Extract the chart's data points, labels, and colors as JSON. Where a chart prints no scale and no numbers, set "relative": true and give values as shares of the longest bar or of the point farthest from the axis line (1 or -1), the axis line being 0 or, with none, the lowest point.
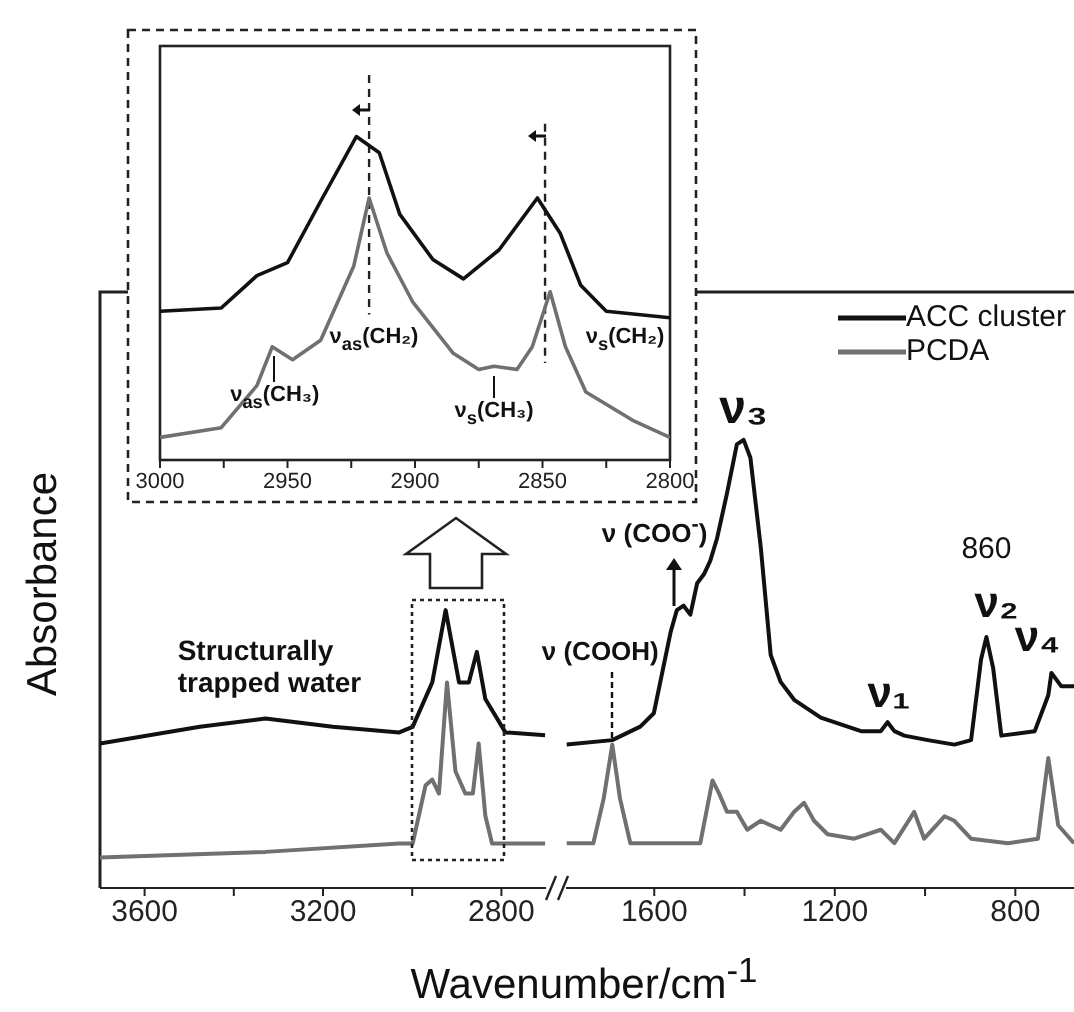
{
  "chart_data": [
    {
      "type": "line",
      "relative": true,
      "ylabel": "Absorbance",
      "xlabel": "Wavenumber/cm$^{-1}$",
      "xlim": [
        3700,
        2700
      ],
      "xticks": [
        3600,
        {
          "value": 3400,
          "label": null
        },
        3200,
        {
          "value": 3000,
          "label": null
        },
        2800
      ],
      "series": [
        {
          "color": "#111111",
          "x": [
            3700,
            3476,
            3329,
            3178,
            3029,
            2999,
            2955,
            2925,
            2895,
            2873,
            2855,
            2836,
            2791,
            2702
          ],
          "values": [
            0.52,
            0.58,
            0.61,
            0.58,
            0.56,
            0.58,
            0.74,
            1.0,
            0.74,
            0.74,
            0.85,
            0.68,
            0.56,
            0.55
          ]
        },
        {
          "color": "#707070",
          "x": [
            3700,
            3329,
            3029,
            2999,
            2970,
            2955,
            2940,
            2922,
            2903,
            2881,
            2864,
            2851,
            2836,
            2821,
            2702
          ],
          "values": [
            0.11,
            0.13,
            0.16,
            0.16,
            0.37,
            0.39,
            0.34,
            0.74,
            0.42,
            0.34,
            0.34,
            0.52,
            0.26,
            0.16,
            0.16
          ]
        }
      ],
      "annotations": [
        {
          "text": "Structurally\ntrapped water",
          "x": 3320,
          "y": 0.61
        }
      ]
    },
    {
      "type": "line",
      "relative": true,
      "xlim": [
        1800,
        670
      ],
      "xticks": [
        1600,
        {
          "value": 1400,
          "label": null
        },
        1200,
        {
          "value": 1000,
          "label": null
        },
        800
      ],
      "legend": "top right",
      "series": [
        {
          "name": "ACC cluster",
          "color": "#111111",
          "x": [
            1794,
            1693,
            1631,
            1601,
            1564,
            1550,
            1535,
            1520,
            1505,
            1490,
            1476,
            1461,
            1439,
            1417,
            1402,
            1387,
            1364,
            1342,
            1320,
            1290,
            1231,
            1142,
            1098,
            1083,
            1068,
            1046,
            994,
            935,
            898,
            876,
            864,
            849,
            831,
            757,
            727,
            720,
            698,
            670
          ],
          "values": [
            0.32,
            0.33,
            0.36,
            0.39,
            0.57,
            0.62,
            0.63,
            0.61,
            0.68,
            0.7,
            0.73,
            0.78,
            0.88,
            0.99,
            1.0,
            0.96,
            0.76,
            0.52,
            0.46,
            0.42,
            0.38,
            0.35,
            0.35,
            0.37,
            0.35,
            0.34,
            0.33,
            0.32,
            0.33,
            0.51,
            0.56,
            0.49,
            0.34,
            0.35,
            0.43,
            0.48,
            0.45,
            0.45
          ]
        },
        {
          "name": "PCDA",
          "color": "#707070",
          "x": [
            1794,
            1735,
            1712,
            1693,
            1676,
            1653,
            1498,
            1471,
            1456,
            1439,
            1417,
            1394,
            1364,
            1320,
            1290,
            1268,
            1246,
            1216,
            1157,
            1098,
            1068,
            1024,
            1002,
            957,
            935,
            898,
            816,
            750,
            727,
            705,
            670
          ],
          "values": [
            0.1,
            0.1,
            0.2,
            0.32,
            0.2,
            0.1,
            0.1,
            0.24,
            0.21,
            0.17,
            0.17,
            0.13,
            0.15,
            0.13,
            0.17,
            0.19,
            0.15,
            0.12,
            0.11,
            0.13,
            0.1,
            0.17,
            0.11,
            0.16,
            0.15,
            0.11,
            0.1,
            0.11,
            0.29,
            0.14,
            0.1
          ]
        }
      ],
      "annotations": [
        {
          "text": "ν (COOH)",
          "x": 1693,
          "y": 0.33
        },
        {
          "text": "ν (COO$^{-}$)",
          "x": 1555,
          "y": 0.62
        },
        {
          "text": "ν₃",
          "x": 1402,
          "y": 1.0
        },
        {
          "text": "ν₁",
          "x": 1080,
          "y": 0.37
        },
        {
          "text": "ν₂",
          "x": 864,
          "y": 0.56
        },
        {
          "text": "860",
          "x": 864,
          "y": 0.56
        },
        {
          "text": "ν₄",
          "x": 720,
          "y": 0.48
        }
      ]
    },
    {
      "type": "line",
      "relative": true,
      "xlim": [
        3000,
        2800
      ],
      "xticks": [
        3000,
        {
          "value": 2975,
          "label": null
        },
        2950,
        {
          "value": 2925,
          "label": null
        },
        2900,
        {
          "value": 2875,
          "label": null
        },
        2850,
        {
          "value": 2825,
          "label": null
        },
        2800
      ],
      "series": [
        {
          "color": "#111111",
          "x": [
            3000,
            2976,
            2962,
            2950,
            2937,
            2923,
            2914,
            2906,
            2893,
            2881,
            2867,
            2852,
            2843,
            2835,
            2825,
            2800
          ],
          "values": [
            0.46,
            0.47,
            0.57,
            0.61,
            0.8,
            1.0,
            0.95,
            0.76,
            0.62,
            0.56,
            0.65,
            0.81,
            0.7,
            0.54,
            0.46,
            0.44
          ]
        },
        {
          "color": "#707070",
          "x": [
            3000,
            2976,
            2962,
            2956,
            2948,
            2937,
            2924,
            2918,
            2911,
            2901,
            2885,
            2875,
            2869,
            2860,
            2854,
            2847,
            2841,
            2833,
            2814,
            2800
          ],
          "values": [
            0.07,
            0.1,
            0.23,
            0.35,
            0.31,
            0.37,
            0.6,
            0.81,
            0.64,
            0.49,
            0.33,
            0.28,
            0.29,
            0.28,
            0.35,
            0.52,
            0.35,
            0.21,
            0.12,
            0.07
          ]
        }
      ],
      "ref_lines": [
        {
          "axis": "x",
          "value": 2918,
          "color": "#222222",
          "line_style": "dashed"
        },
        {
          "axis": "x",
          "value": 2849,
          "color": "#222222",
          "line_style": "dashed"
        }
      ],
      "annotations": [
        {
          "text": "ν$_{as}$(CH₃)",
          "x": 2955,
          "y": 0.35
        },
        "ν$_{as}$(CH₂)",
        {
          "text": "ν$_{s}$(CH₃)",
          "x": 2869,
          "y": 0.29
        },
        {
          "text": "ν$_{s}$(CH₂)",
          "x": 2849,
          "y": 0.52
        }
      ]
    }
  ]
}
